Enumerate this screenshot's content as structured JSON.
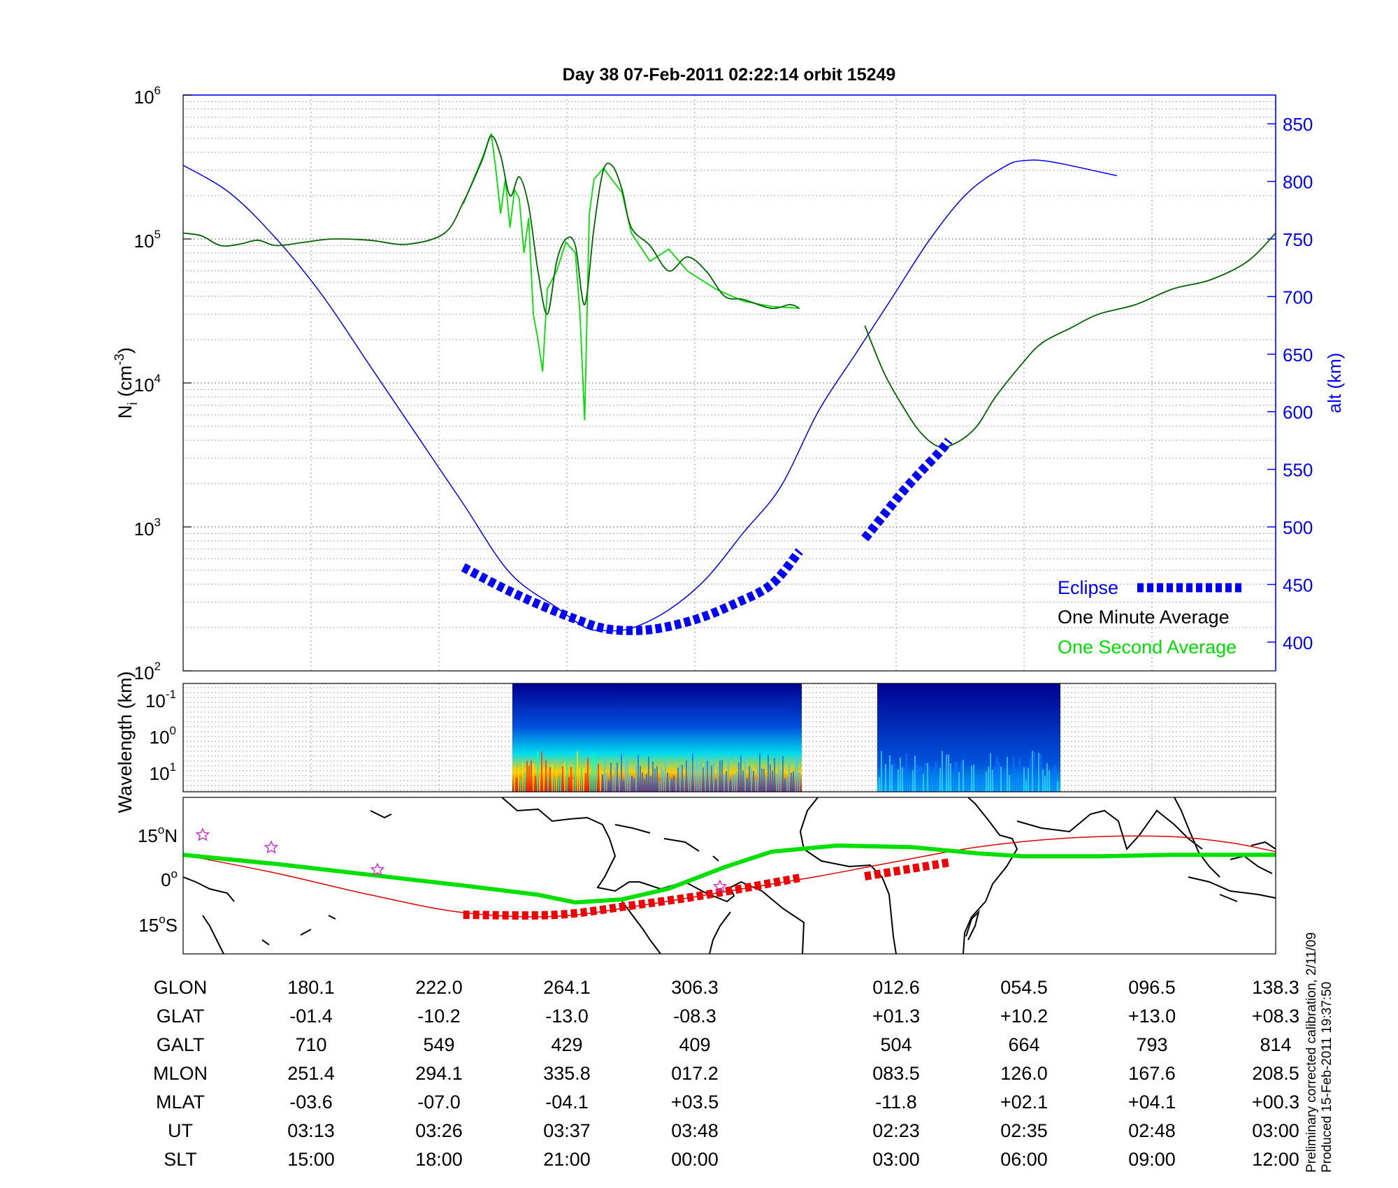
{
  "chart_data": {
    "title": "Day 38  07-Feb-2011 02:22:14   orbit 15249",
    "note_line1": "Preliminary corrected calibration, 2/11/09",
    "note_line2": "Produced 15-Feb-2011 19:37:50",
    "top_panel": {
      "type": "line",
      "ylabel_left": "N",
      "ylabel_left_sub": "i",
      "ylabel_left_unit_open": " (cm",
      "ylabel_left_unit_sup": "-3",
      "ylabel_left_unit_close": ")",
      "ylabel_right": "alt (km)",
      "yscale_left": "log",
      "ylim_left": [
        100,
        1000000
      ],
      "left_ticks": [
        {
          "base": "10",
          "exp": "2"
        },
        {
          "base": "10",
          "exp": "3"
        },
        {
          "base": "10",
          "exp": "4"
        },
        {
          "base": "10",
          "exp": "5"
        },
        {
          "base": "10",
          "exp": "6"
        }
      ],
      "ylim_right": [
        375,
        875
      ],
      "right_ticks": [
        "400",
        "450",
        "500",
        "550",
        "600",
        "650",
        "700",
        "750",
        "800",
        "850"
      ],
      "legend": {
        "position": "lower-right",
        "eclipse": "Eclipse",
        "one_minute": "One Minute Average",
        "one_second": "One Second Average"
      },
      "colors": {
        "altitude": "#0000ff",
        "one_minute": "#006400",
        "one_second": "#00e000",
        "eclipse": "#0000ff"
      },
      "altitude_km": [
        [
          0.0,
          814
        ],
        [
          0.05,
          790
        ],
        [
          0.1,
          750
        ],
        [
          0.15,
          700
        ],
        [
          0.2,
          640
        ],
        [
          0.25,
          580
        ],
        [
          0.3,
          520
        ],
        [
          0.35,
          460
        ],
        [
          0.4,
          430
        ],
        [
          0.43,
          413
        ],
        [
          0.45,
          410
        ],
        [
          0.48,
          412
        ],
        [
          0.52,
          428
        ],
        [
          0.56,
          455
        ],
        [
          0.6,
          495
        ],
        [
          0.64,
          535
        ],
        [
          0.68,
          600
        ],
        [
          0.72,
          650
        ],
        [
          0.76,
          700
        ],
        [
          0.8,
          750
        ],
        [
          0.84,
          790
        ],
        [
          0.88,
          813
        ],
        [
          0.9,
          818
        ],
        [
          0.93,
          817
        ],
        [
          1.0,
          805
        ]
      ],
      "one_minute_ni": [
        [
          0.0,
          110000
        ],
        [
          0.02,
          105000
        ],
        [
          0.04,
          90000
        ],
        [
          0.06,
          92000
        ],
        [
          0.08,
          98000
        ],
        [
          0.1,
          90000
        ],
        [
          0.13,
          95000
        ],
        [
          0.16,
          100000
        ],
        [
          0.2,
          98000
        ],
        [
          0.24,
          92000
        ],
        [
          0.28,
          110000
        ],
        [
          0.3,
          180000
        ],
        [
          0.32,
          350000
        ],
        [
          0.33,
          520000
        ],
        [
          0.34,
          380000
        ],
        [
          0.35,
          200000
        ],
        [
          0.36,
          270000
        ],
        [
          0.37,
          170000
        ],
        [
          0.38,
          60000
        ],
        [
          0.39,
          30000
        ],
        [
          0.4,
          70000
        ],
        [
          0.41,
          100000
        ],
        [
          0.42,
          90000
        ],
        [
          0.43,
          35000
        ],
        [
          0.44,
          120000
        ],
        [
          0.45,
          300000
        ],
        [
          0.46,
          320000
        ],
        [
          0.47,
          220000
        ],
        [
          0.48,
          120000
        ],
        [
          0.5,
          90000
        ],
        [
          0.52,
          60000
        ],
        [
          0.54,
          75000
        ],
        [
          0.56,
          60000
        ],
        [
          0.58,
          40000
        ],
        [
          0.6,
          38000
        ],
        [
          0.63,
          33000
        ],
        [
          0.65,
          35000
        ],
        [
          0.66,
          33000
        ]
      ],
      "one_second_ni": [
        [
          0.3,
          175000
        ],
        [
          0.32,
          360000
        ],
        [
          0.33,
          540000
        ],
        [
          0.335,
          300000
        ],
        [
          0.34,
          150000
        ],
        [
          0.345,
          260000
        ],
        [
          0.35,
          120000
        ],
        [
          0.355,
          220000
        ],
        [
          0.36,
          190000
        ],
        [
          0.365,
          80000
        ],
        [
          0.37,
          140000
        ],
        [
          0.375,
          30000
        ],
        [
          0.38,
          20000
        ],
        [
          0.385,
          12000
        ],
        [
          0.39,
          45000
        ],
        [
          0.4,
          60000
        ],
        [
          0.41,
          95000
        ],
        [
          0.42,
          80000
        ],
        [
          0.425,
          30000
        ],
        [
          0.43,
          5500
        ],
        [
          0.435,
          150000
        ],
        [
          0.44,
          260000
        ],
        [
          0.45,
          310000
        ],
        [
          0.47,
          210000
        ],
        [
          0.48,
          110000
        ],
        [
          0.5,
          70000
        ],
        [
          0.52,
          85000
        ],
        [
          0.54,
          60000
        ],
        [
          0.57,
          45000
        ],
        [
          0.6,
          37000
        ],
        [
          0.63,
          34000
        ],
        [
          0.66,
          33000
        ]
      ],
      "one_minute_ni_2": [
        [
          0.73,
          25000
        ],
        [
          0.75,
          12000
        ],
        [
          0.77,
          7000
        ],
        [
          0.79,
          4500
        ],
        [
          0.81,
          3600
        ],
        [
          0.83,
          3900
        ],
        [
          0.85,
          5000
        ],
        [
          0.87,
          8000
        ],
        [
          0.9,
          14000
        ],
        [
          0.92,
          19000
        ],
        [
          0.95,
          24000
        ],
        [
          0.98,
          30000
        ],
        [
          1.02,
          35000
        ],
        [
          1.06,
          45000
        ],
        [
          1.1,
          52000
        ],
        [
          1.14,
          70000
        ],
        [
          1.17,
          110000
        ]
      ],
      "eclipse_alt": [
        [
          0.3,
          465
        ],
        [
          0.34,
          448
        ],
        [
          0.38,
          433
        ],
        [
          0.42,
          420
        ],
        [
          0.45,
          412
        ],
        [
          0.48,
          410
        ],
        [
          0.51,
          412
        ],
        [
          0.55,
          420
        ],
        [
          0.59,
          433
        ],
        [
          0.63,
          450
        ],
        [
          0.66,
          479
        ]
      ],
      "eclipse_alt_2": [
        [
          0.73,
          490
        ],
        [
          0.75,
          510
        ],
        [
          0.77,
          530
        ],
        [
          0.79,
          548
        ],
        [
          0.81,
          565
        ],
        [
          0.82,
          575
        ]
      ]
    },
    "middle_panel": {
      "type": "heatmap",
      "ylabel": "Wavelength (km)",
      "ticks": [
        {
          "base": "10",
          "exp": "-1"
        },
        {
          "base": "10",
          "exp": "0"
        },
        {
          "base": "10",
          "exp": "1"
        }
      ],
      "segments": [
        [
          0.3,
          0.66
        ],
        [
          0.73,
          0.96
        ]
      ]
    },
    "bottom_panel": {
      "type": "map",
      "lat_ticks": [
        {
          "deg": "15",
          "unit": "o",
          "hem": "N"
        },
        {
          "deg": "0",
          "unit": "o",
          "hem": ""
        },
        {
          "deg": "15",
          "unit": "o",
          "hem": "S"
        }
      ],
      "colors": {
        "geographic_track": "#dd0000",
        "magnetic_equator": "#00e000",
        "eclipse": "#ee0000",
        "star": "#cc33cc"
      }
    },
    "table": {
      "row_labels": [
        "GLON",
        "GLAT",
        "GALT",
        "MLON",
        "MLAT",
        "UT",
        "SLT"
      ],
      "columns": [
        [
          "180.1",
          "-01.4",
          "710",
          "251.4",
          "-03.6",
          "03:13",
          "15:00"
        ],
        [
          "222.0",
          "-10.2",
          "549",
          "294.1",
          "-07.0",
          "03:26",
          "18:00"
        ],
        [
          "264.1",
          "-13.0",
          "429",
          "335.8",
          "-04.1",
          "03:37",
          "21:00"
        ],
        [
          "306.3",
          "-08.3",
          "409",
          "017.2",
          "+03.5",
          "03:48",
          "00:00"
        ],
        [
          "012.6",
          "+01.3",
          "504",
          "083.5",
          "-11.8",
          "02:23",
          "03:00"
        ],
        [
          "054.5",
          "+10.2",
          "664",
          "126.0",
          "+02.1",
          "02:35",
          "06:00"
        ],
        [
          "096.5",
          "+13.0",
          "793",
          "167.6",
          "+04.1",
          "02:48",
          "09:00"
        ],
        [
          "138.3",
          "+08.3",
          "814",
          "208.5",
          "+00.3",
          "03:00",
          "12:00"
        ]
      ]
    }
  }
}
